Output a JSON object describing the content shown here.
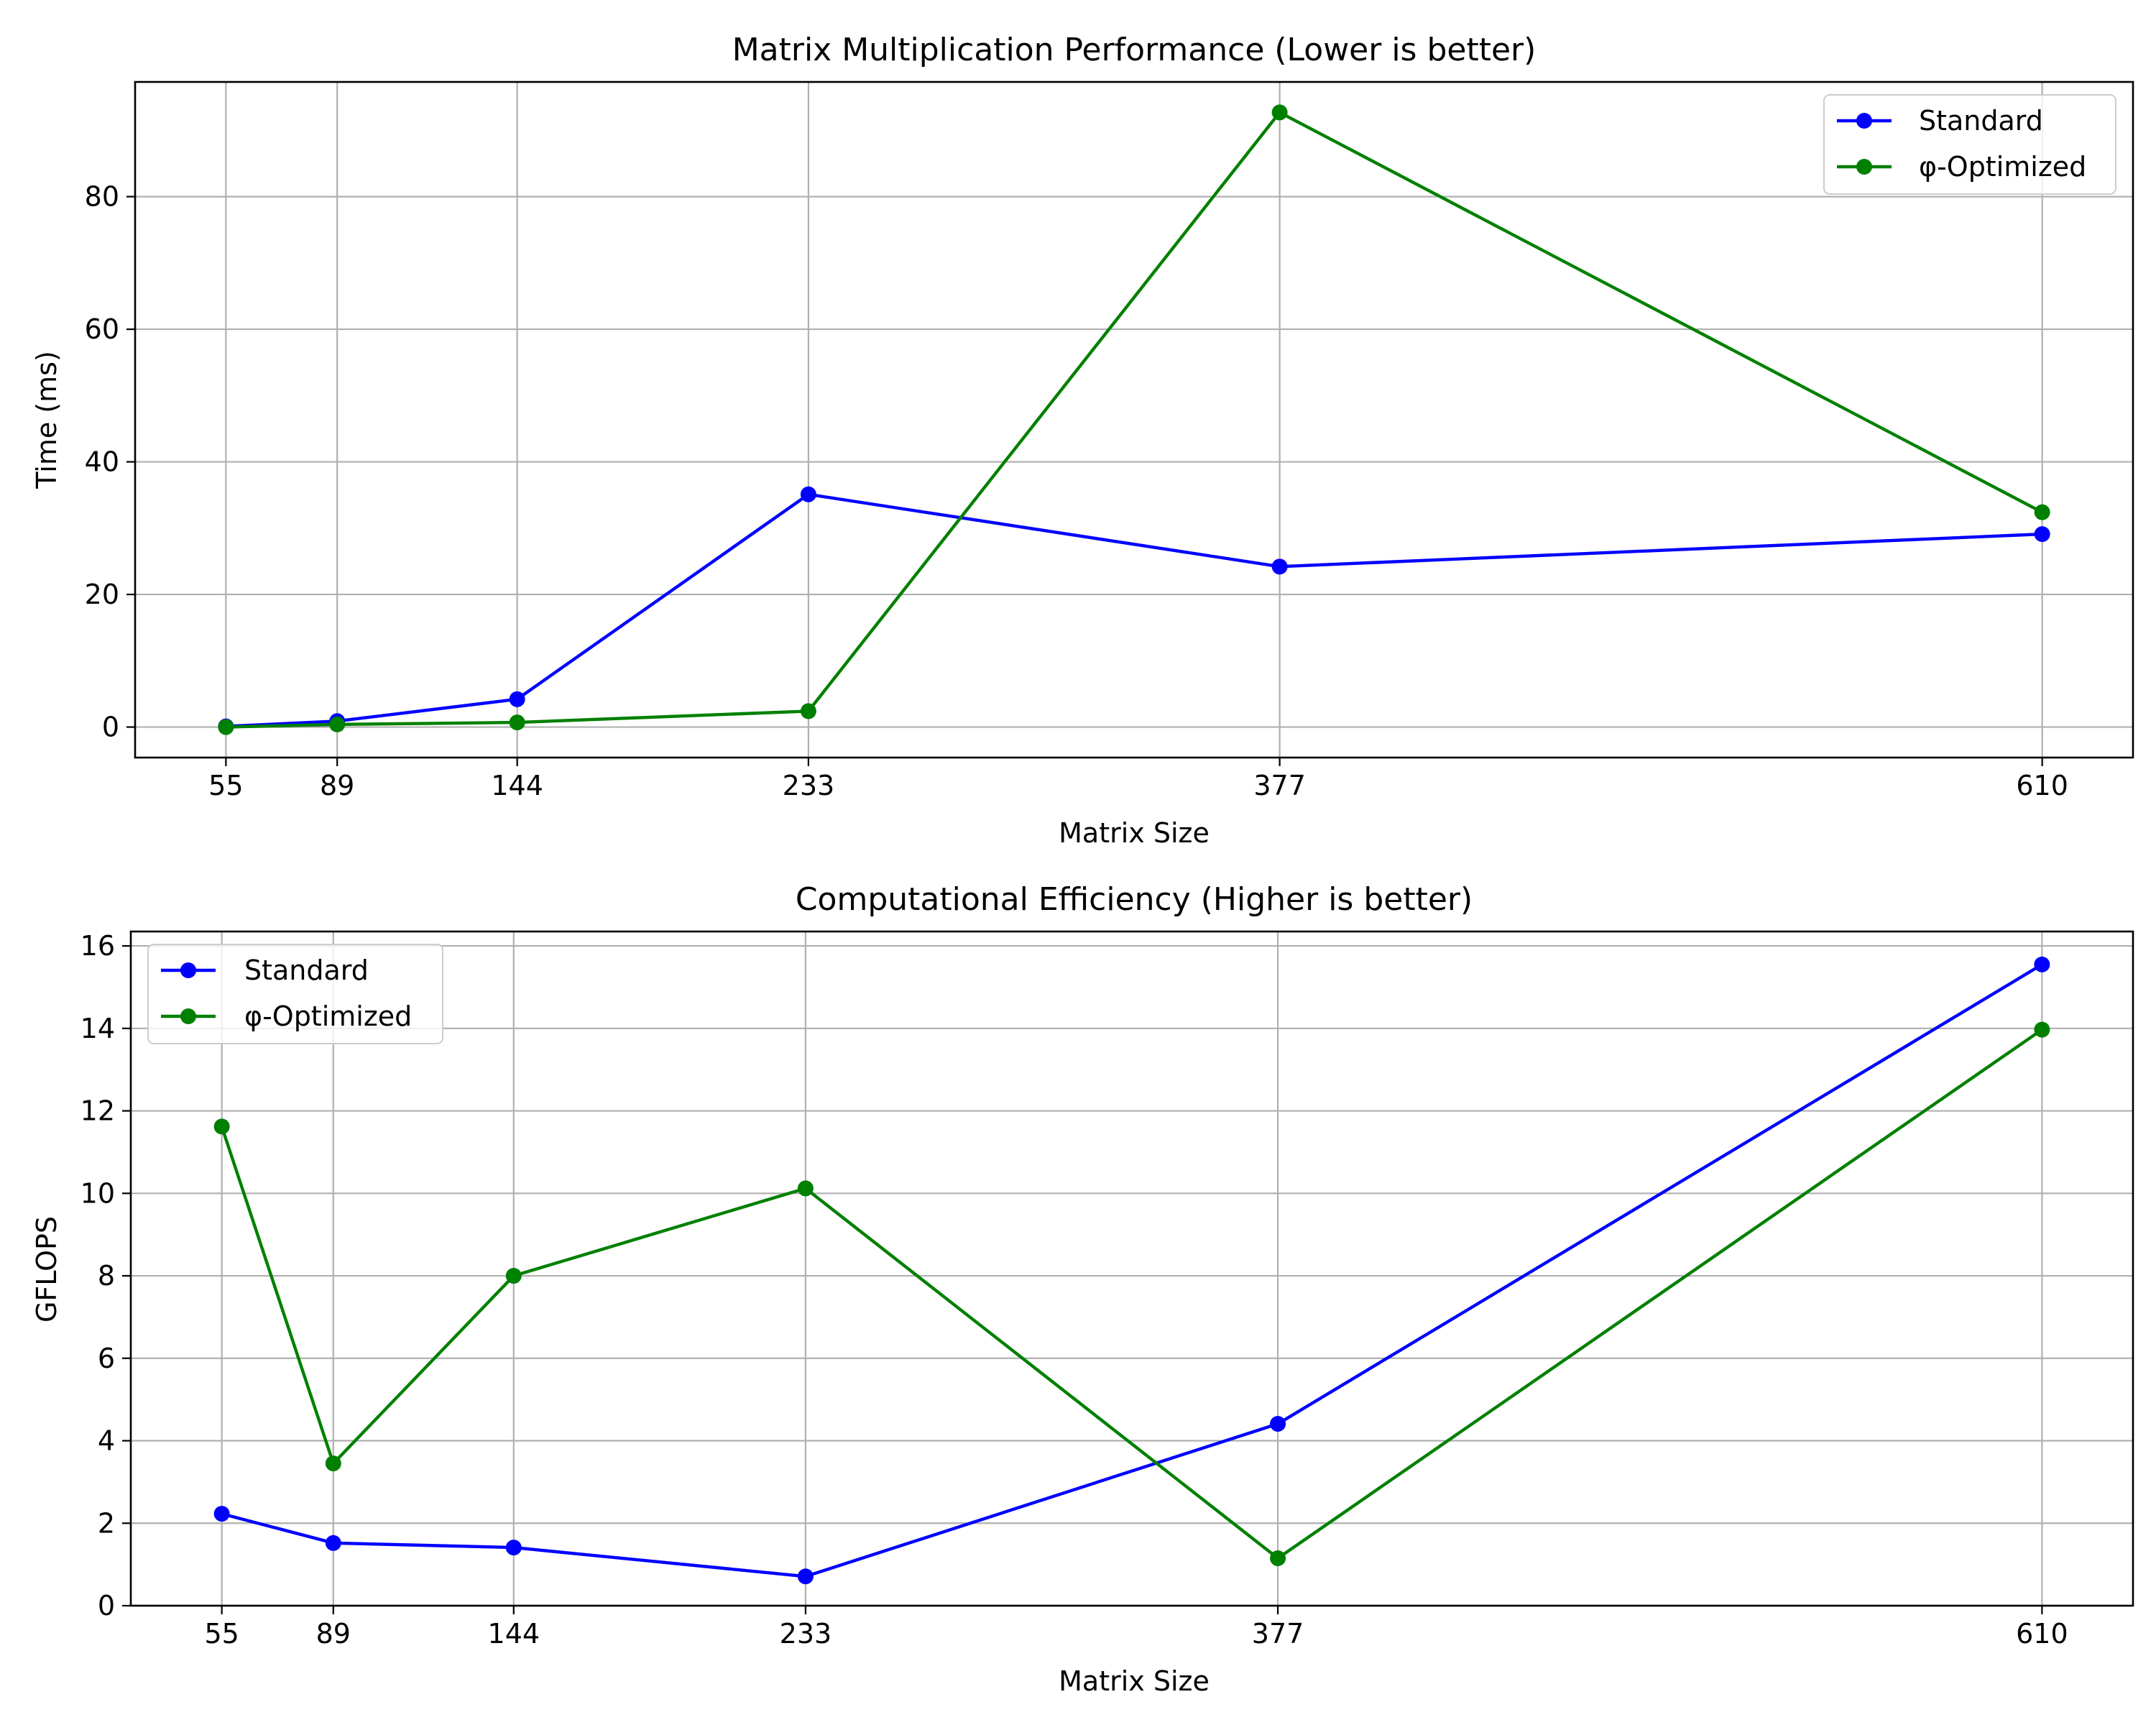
{
  "chart_data": [
    {
      "type": "line",
      "title": "Matrix Multiplication Performance (Lower is better)",
      "xlabel": "Matrix Size",
      "ylabel": "Time (ms)",
      "x": [
        55,
        89,
        144,
        233,
        377,
        610
      ],
      "x_tick_labels": [
        "55",
        "89",
        "144",
        "233",
        "377",
        "610"
      ],
      "y_ticks": [
        0,
        20,
        40,
        60,
        80
      ],
      "y_tick_labels": [
        "0",
        "20",
        "40",
        "60",
        "80"
      ],
      "xlim": [
        27.25,
        637.75
      ],
      "ylim": [
        -4.6,
        97.3
      ],
      "grid": true,
      "legend_position": "upper right",
      "series": [
        {
          "name": "Standard",
          "color": "#0000ff",
          "values": [
            0.1,
            0.9,
            4.2,
            35.1,
            24.2,
            29.1
          ]
        },
        {
          "name": "φ-Optimized",
          "color": "#008000",
          "values": [
            0.0,
            0.4,
            0.7,
            2.4,
            92.7,
            32.4
          ]
        }
      ]
    },
    {
      "type": "line",
      "title": "Computational Efficiency (Higher is better)",
      "xlabel": "Matrix Size",
      "ylabel": "GFLOPS",
      "x": [
        55,
        89,
        144,
        233,
        377,
        610
      ],
      "x_tick_labels": [
        "55",
        "89",
        "144",
        "233",
        "377",
        "610"
      ],
      "y_ticks": [
        0,
        2,
        4,
        6,
        8,
        10,
        12,
        14,
        16
      ],
      "y_tick_labels": [
        "0",
        "2",
        "4",
        "6",
        "8",
        "10",
        "12",
        "14",
        "16"
      ],
      "xlim": [
        27.25,
        637.75
      ],
      "ylim": [
        0,
        16.35
      ],
      "grid": true,
      "legend_position": "upper left",
      "series": [
        {
          "name": "Standard",
          "color": "#0000ff",
          "values": [
            2.23,
            1.52,
            1.41,
            0.71,
            4.41,
            15.55
          ]
        },
        {
          "name": "φ-Optimized",
          "color": "#008000",
          "values": [
            11.62,
            3.45,
            8.0,
            10.12,
            1.15,
            13.97
          ]
        }
      ]
    }
  ]
}
